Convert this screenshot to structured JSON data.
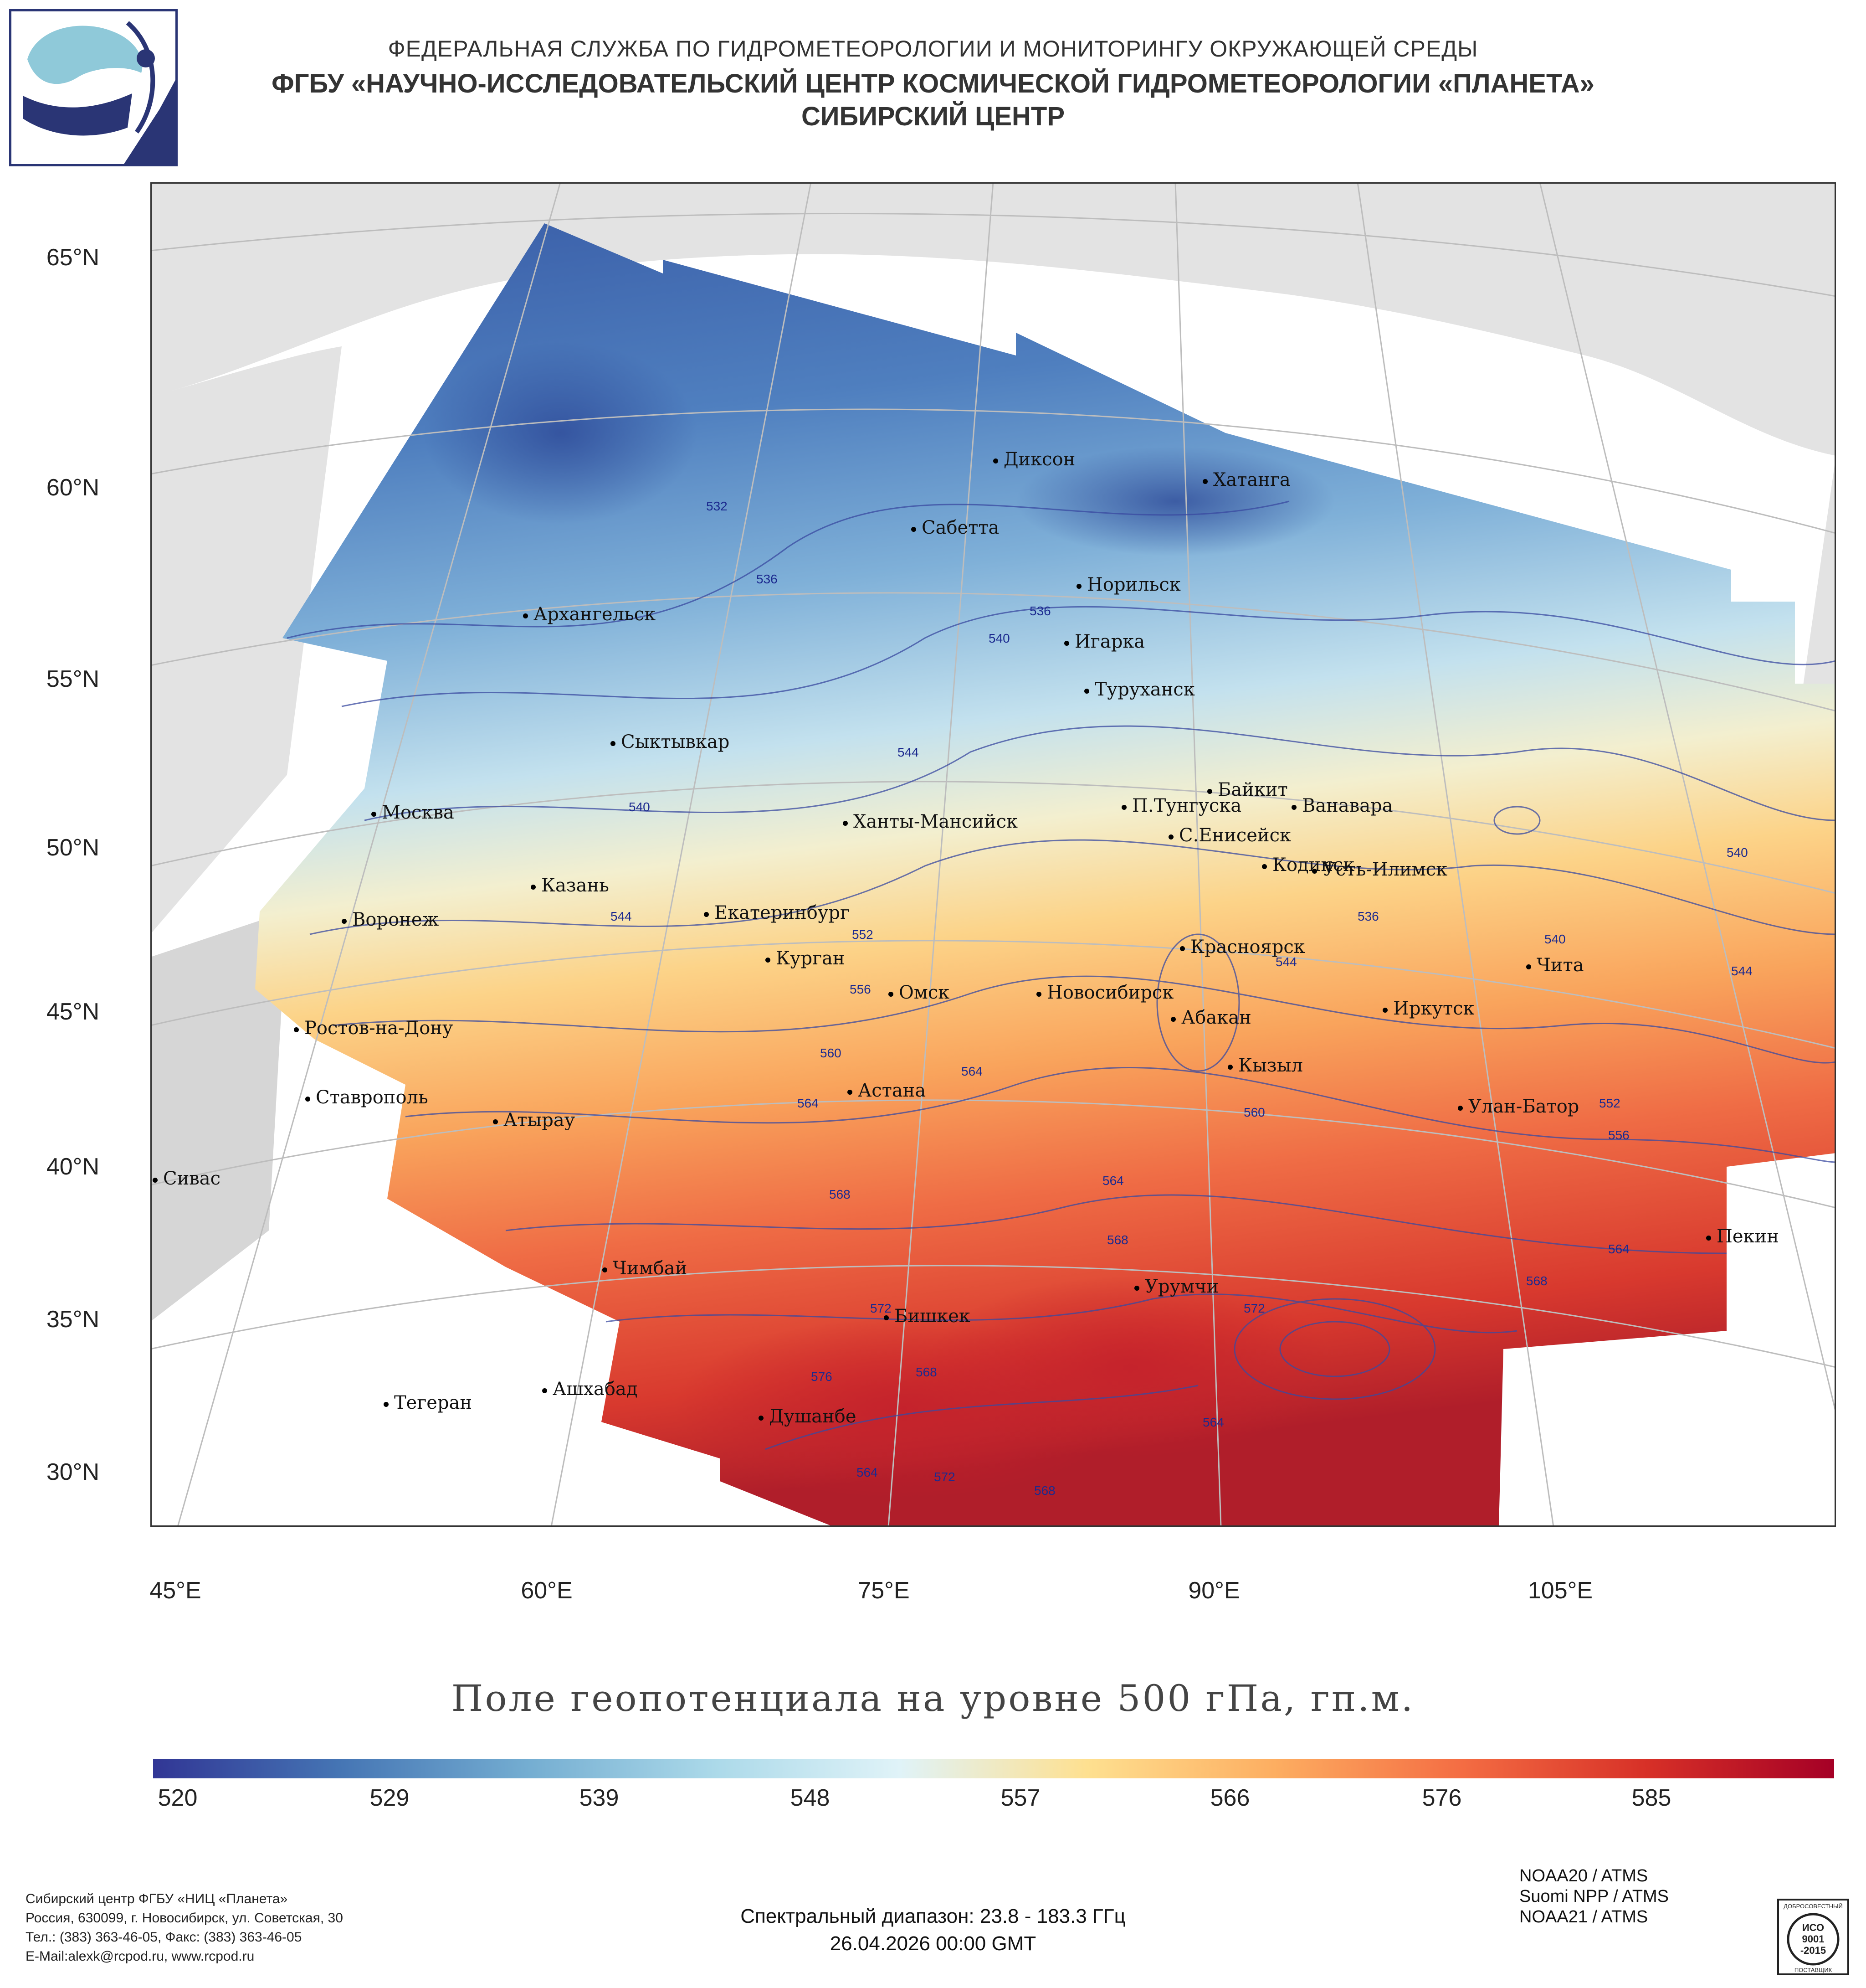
{
  "header": {
    "line1": "ФЕДЕРАЛЬНАЯ СЛУЖБА ПО ГИДРОМЕТЕОРОЛОГИИ И МОНИТОРИНГУ ОКРУЖАЮЩЕЙ СРЕДЫ",
    "line2": "ФГБУ «НАУЧНО-ИССЛЕДОВАТЕЛЬСКИЙ ЦЕНТР КОСМИЧЕСКОЙ ГИДРОМЕТЕОРОЛОГИИ «ПЛАНЕТА»",
    "line3": "СИБИРСКИЙ ЦЕНТР"
  },
  "axes": {
    "lat_labels": [
      "65°N",
      "60°N",
      "55°N",
      "50°N",
      "45°N",
      "40°N",
      "35°N",
      "30°N"
    ],
    "lon_labels": [
      "45°E",
      "60°E",
      "75°E",
      "90°E",
      "105°E"
    ]
  },
  "cities": [
    {
      "name": "Диксон"
    },
    {
      "name": "Хатанга"
    },
    {
      "name": "Сабетта"
    },
    {
      "name": "Норильск"
    },
    {
      "name": "Архангельск"
    },
    {
      "name": "Игарка"
    },
    {
      "name": "Туруханск"
    },
    {
      "name": "Сыктывкар"
    },
    {
      "name": "Байкит"
    },
    {
      "name": "П.Тунгуска"
    },
    {
      "name": "Ванавара"
    },
    {
      "name": "Москва"
    },
    {
      "name": "Ханты-Мансийск"
    },
    {
      "name": "С.Енисейск"
    },
    {
      "name": "Казань"
    },
    {
      "name": "Кодинск"
    },
    {
      "name": "Усть-Илимск"
    },
    {
      "name": "Воронеж"
    },
    {
      "name": "Екатеринбург"
    },
    {
      "name": "Красноярск"
    },
    {
      "name": "Курган"
    },
    {
      "name": "Чита"
    },
    {
      "name": "Омск"
    },
    {
      "name": "Новосибирск"
    },
    {
      "name": "Ростов-на-Дону"
    },
    {
      "name": "Абакан"
    },
    {
      "name": "Иркутск"
    },
    {
      "name": "Кызыл"
    },
    {
      "name": "Астана"
    },
    {
      "name": "Ставрополь"
    },
    {
      "name": "Улан-Батор"
    },
    {
      "name": "Атырау"
    },
    {
      "name": "Сивас"
    },
    {
      "name": "Пекин"
    },
    {
      "name": "Чимбай"
    },
    {
      "name": "Урумчи"
    },
    {
      "name": "Бишкек"
    },
    {
      "name": "Ашхабад"
    },
    {
      "name": "Тегеран"
    },
    {
      "name": "Душанбе"
    }
  ],
  "contours": [
    "532",
    "536",
    "536",
    "540",
    "540",
    "544",
    "544",
    "552",
    "556",
    "560",
    "564",
    "568",
    "572",
    "576",
    "568",
    "564",
    "572",
    "568",
    "564",
    "568",
    "572",
    "564",
    "540",
    "540",
    "544",
    "552",
    "556",
    "564",
    "568",
    "536",
    "544",
    "560",
    "564"
  ],
  "title": "Поле геопотенциала на уровне 500 гПа, гп.м.",
  "colorbar": {
    "ticks": [
      "520",
      "529",
      "539",
      "548",
      "557",
      "566",
      "576",
      "585"
    ],
    "colors": [
      "#313695",
      "#4575b4",
      "#74add1",
      "#abd9e9",
      "#e0f3f8",
      "#fee090",
      "#fdae61",
      "#f46d43",
      "#d73027",
      "#a50026"
    ]
  },
  "footer": {
    "address": [
      "Сибирский центр ФГБУ «НИЦ «Планета»",
      "Россия, 630099, г. Новосибирск, ул. Советская, 30",
      "Тел.: (383) 363-46-05, Факс: (383) 363-46-05",
      "E-Mail:alexk@rcpod.ru, www.rcpod.ru"
    ],
    "spectral": "Спектральный диапазон: 23.8 - 183.3 ГГц",
    "datetime": "26.04.2026 00:00 GMT",
    "satellites": [
      "NOAA20 / ATMS",
      "Suomi NPP / ATMS",
      "NOAA21 / ATMS"
    ],
    "iso": {
      "top": "ДОБРОСОВЕСТНЫЙ",
      "mid1": "ИСО",
      "mid2": "9001",
      "mid3": "-2015",
      "bottom": "ПОСТАВЩИК"
    }
  }
}
